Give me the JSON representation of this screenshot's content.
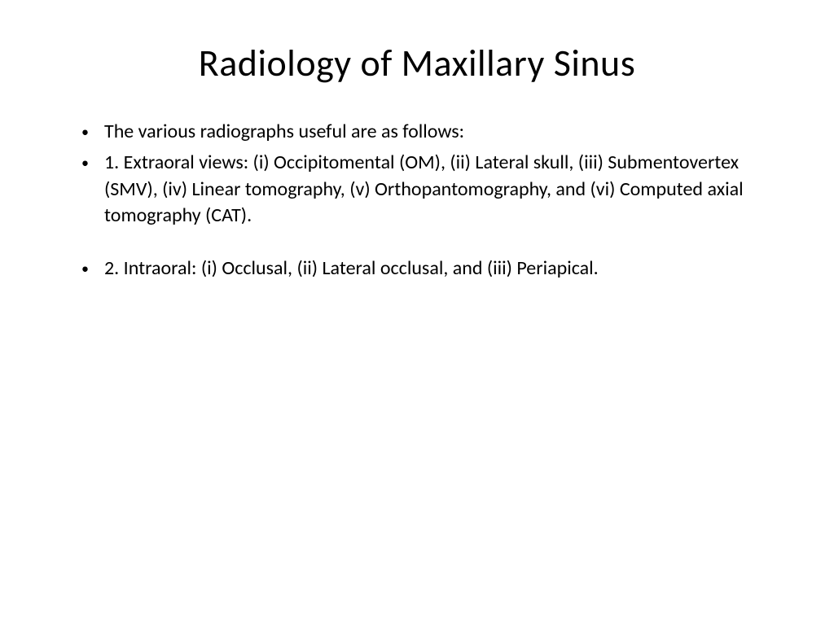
{
  "slide": {
    "title": "Radiology of Maxillary Sinus",
    "title_fontsize": 46,
    "title_color": "#000000",
    "body_fontsize": 24,
    "body_color": "#000000",
    "background_color": "#ffffff",
    "font_family": "Calibri",
    "bullets": [
      {
        "text": "The various radiographs useful are as follows:",
        "spaced": false
      },
      {
        "text": "1. Extraoral views: (i) Occipitomental (OM), (ii) Lateral skull, (iii) Submentovertex (SMV), (iv) Linear tomography, (v) Orthopantomography, and (vi) Computed axial tomography (CAT).",
        "spaced": false
      },
      {
        "text": "2. Intraoral: (i) Occlusal, (ii) Lateral occlusal, and (iii) Periapical.",
        "spaced": true
      }
    ],
    "bullet_marker": "•"
  }
}
